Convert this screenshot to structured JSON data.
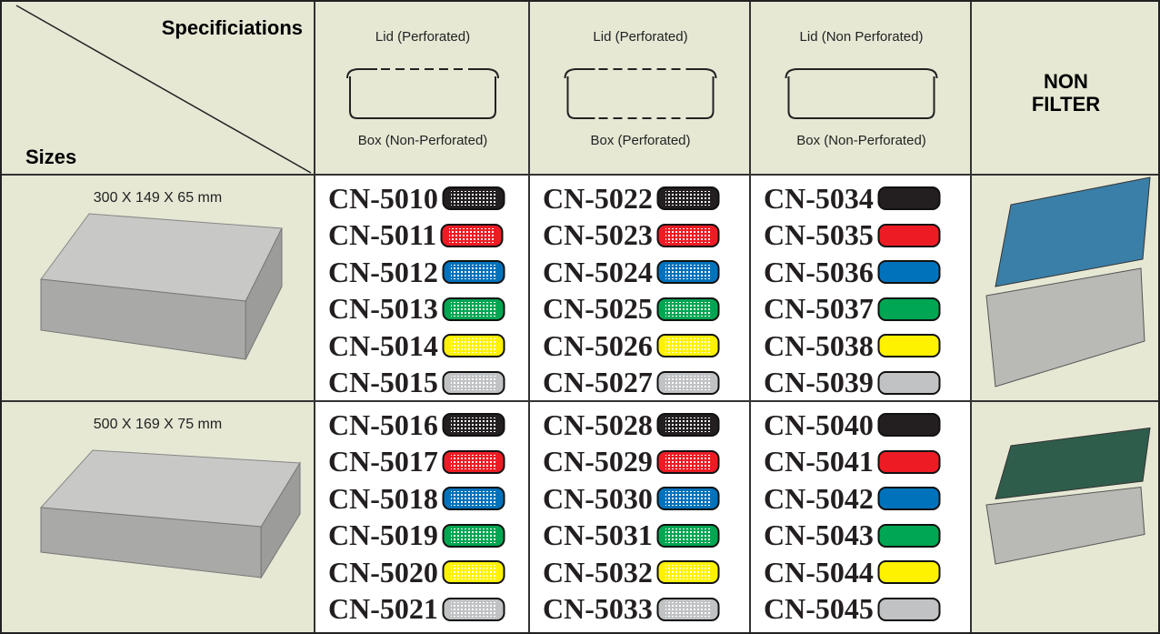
{
  "header": {
    "corner_top": "Specificiations",
    "corner_bottom": "Sizes",
    "columns": [
      {
        "lid": "Lid (Perforated)",
        "box": "Box (Non-Perforated)"
      },
      {
        "lid": "Lid (Perforated)",
        "box": "Box (Perforated)"
      },
      {
        "lid": "Lid (Non Perforated)",
        "box": "Box (Non-Perforated)"
      }
    ],
    "last": "NON FILTER"
  },
  "swatch_colors": [
    "#231f20",
    "#ed1c24",
    "#0072bc",
    "#00a651",
    "#fff200",
    "#c0c2c4"
  ],
  "rows": [
    {
      "size": "300 X 149 X 65 mm",
      "codes": [
        [
          "CN-5010",
          "CN-5011",
          "CN-5012",
          "CN-5013",
          "CN-5014",
          "CN-5015"
        ],
        [
          "CN-5022",
          "CN-5023",
          "CN-5024",
          "CN-5025",
          "CN-5026",
          "CN-5027"
        ],
        [
          "CN-5034",
          "CN-5035",
          "CN-5036",
          "CN-5037",
          "CN-5038",
          "CN-5039"
        ]
      ]
    },
    {
      "size": "500 X 169 X 75 mm",
      "codes": [
        [
          "CN-5016",
          "CN-5017",
          "CN-5018",
          "CN-5019",
          "CN-5020",
          "CN-5021"
        ],
        [
          "CN-5028",
          "CN-5029",
          "CN-5030",
          "CN-5031",
          "CN-5032",
          "CN-5033"
        ],
        [
          "CN-5040",
          "CN-5041",
          "CN-5042",
          "CN-5043",
          "CN-5044",
          "CN-5045"
        ]
      ]
    }
  ]
}
